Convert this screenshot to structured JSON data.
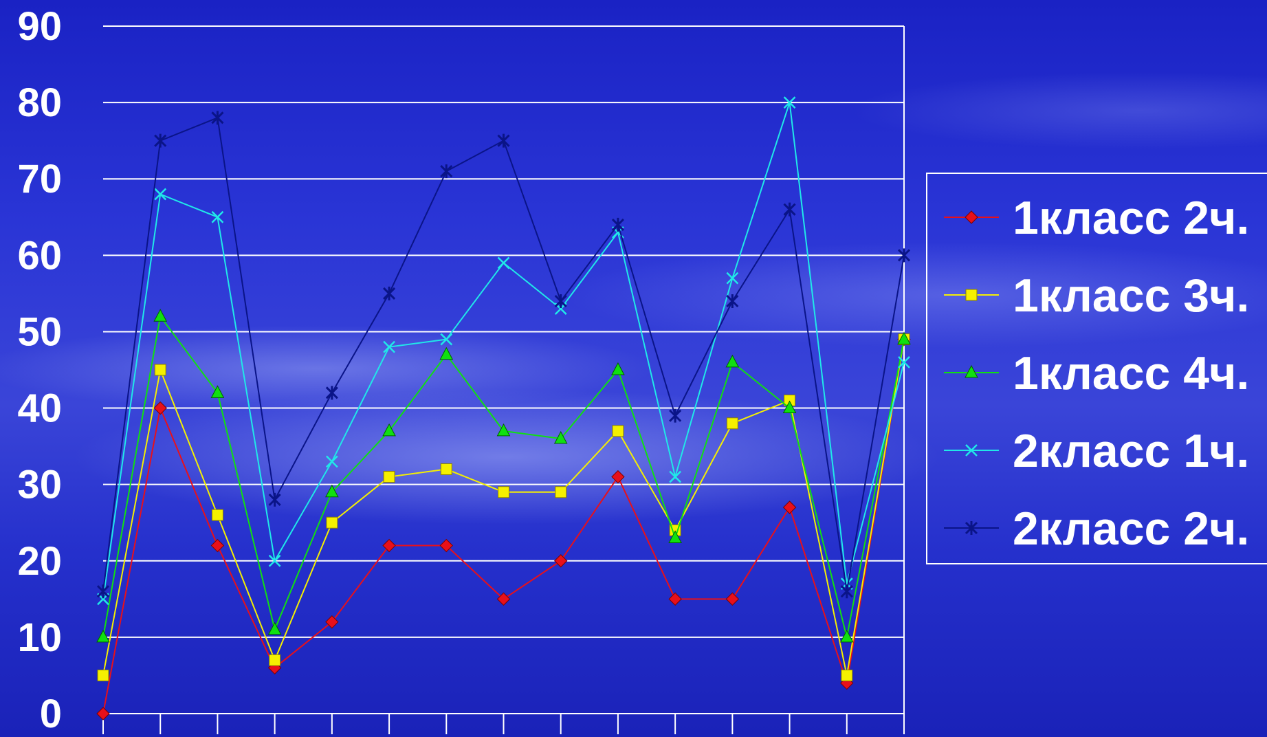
{
  "chart_data": {
    "type": "line",
    "title": "",
    "xlabel": "",
    "ylabel": "",
    "ylim": [
      0,
      90
    ],
    "yticks": [
      "0",
      "10",
      "20",
      "30",
      "40",
      "50",
      "60",
      "70",
      "80",
      "90"
    ],
    "grid": true,
    "legend_position": "right",
    "n_points": 15,
    "series": [
      {
        "name": "1класс 2ч.",
        "color": "#e8101a",
        "marker": "diamond",
        "values": [
          0,
          40,
          22,
          6,
          12,
          22,
          22,
          15,
          20,
          31,
          15,
          15,
          27,
          4,
          49
        ]
      },
      {
        "name": "1класс 3ч.",
        "color": "#f5f000",
        "marker": "square",
        "values": [
          5,
          45,
          26,
          7,
          25,
          31,
          32,
          29,
          29,
          37,
          24,
          38,
          41,
          5,
          49
        ]
      },
      {
        "name": "1класс 4ч.",
        "color": "#10e010",
        "marker": "triangle",
        "values": [
          10,
          52,
          42,
          11,
          29,
          37,
          47,
          37,
          36,
          45,
          23,
          46,
          40,
          10,
          49
        ]
      },
      {
        "name": "2класс 1ч.",
        "color": "#20e8e8",
        "marker": "x",
        "values": [
          15,
          68,
          65,
          20,
          33,
          48,
          49,
          59,
          53,
          63,
          31,
          57,
          80,
          17,
          46
        ]
      },
      {
        "name": "2класс 2ч.",
        "color": "#0a1488",
        "marker": "asterisk",
        "values": [
          16,
          75,
          78,
          28,
          42,
          55,
          71,
          75,
          54,
          64,
          39,
          54,
          66,
          16,
          60
        ]
      }
    ]
  }
}
